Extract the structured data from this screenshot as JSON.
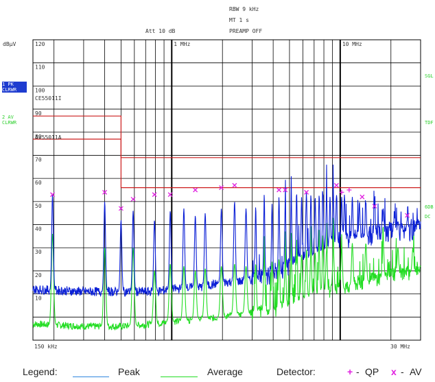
{
  "header": {
    "rbw": "RBW    9 kHz",
    "mt": "MT     1 s",
    "att": "Att  10 dB",
    "preamp": "PREAMP OFF"
  },
  "trace_tags": {
    "t1_line1": "1 PK",
    "t1_line2": "CLRWR",
    "t2_line1": "2 AV",
    "t2_line2": "CLRWR"
  },
  "right_tags": {
    "sgl": "SGL",
    "tdf": "TDF",
    "r6db": "6DB",
    "dc": "DC"
  },
  "limit_labels": {
    "qp": "CE55011I",
    "av": "AV55011A"
  },
  "legend": {
    "title": "Legend:",
    "peak": "Peak",
    "average": "Average",
    "detector": "Detector:",
    "qp_symbol": "+",
    "qp": "QP",
    "av_symbol": "x",
    "av": "AV",
    "dash": "-"
  },
  "colors": {
    "peak": "#0a1fd6",
    "average": "#22dd22",
    "limit": "#cc1b1b",
    "marker": "#e020e0",
    "tag_bg": "#1e3cd0",
    "green_text": "#2fd02f"
  },
  "chart_data": {
    "type": "line",
    "x_scale": "log",
    "x_unit": "MHz",
    "xlim": [
      0.15,
      30
    ],
    "ylim": [
      0,
      130
    ],
    "y_unit": "dBµV",
    "ylabel": "dBµV",
    "x_tick_labels": [
      {
        "x": 0.15,
        "label": "150 kHz"
      },
      {
        "x": 1,
        "label": "1 MHz"
      },
      {
        "x": 10,
        "label": "10 MHz"
      },
      {
        "x": 30,
        "label": "30 MHz"
      }
    ],
    "y_ticks": [
      130,
      120,
      110,
      100,
      90,
      80,
      70,
      60,
      50,
      40,
      30,
      20,
      10,
      0
    ],
    "y_tick_labels": [
      "120",
      "110",
      "100",
      "90",
      "80",
      "70",
      "60",
      "50",
      "40",
      "30",
      "20",
      "10",
      ""
    ],
    "limit_lines": [
      {
        "name": "CE55011I",
        "points": [
          [
            0.15,
            97
          ],
          [
            0.5,
            97
          ],
          [
            0.5,
            79
          ],
          [
            30,
            79
          ]
        ]
      },
      {
        "name": "AV55011A",
        "points": [
          [
            0.15,
            87
          ],
          [
            0.5,
            87
          ],
          [
            0.5,
            66
          ],
          [
            30,
            66
          ]
        ]
      }
    ],
    "series": [
      {
        "name": "Peak",
        "baseline": [
          [
            0.15,
            22
          ],
          [
            0.3,
            21
          ],
          [
            0.5,
            21
          ],
          [
            0.8,
            21
          ],
          [
            1,
            22
          ],
          [
            1.5,
            23
          ],
          [
            2,
            25
          ],
          [
            3,
            26
          ],
          [
            4,
            29
          ],
          [
            5,
            32
          ],
          [
            6,
            35
          ],
          [
            7,
            37
          ],
          [
            8,
            39
          ],
          [
            9,
            41
          ],
          [
            10,
            43
          ],
          [
            12,
            44
          ],
          [
            15,
            45
          ],
          [
            20,
            47
          ],
          [
            25,
            47
          ],
          [
            30,
            48
          ]
        ],
        "peaks": [
          [
            0.196,
            63
          ],
          [
            0.4,
            60
          ],
          [
            0.5,
            52
          ],
          [
            0.59,
            56
          ],
          [
            0.79,
            52
          ],
          [
            0.98,
            56
          ],
          [
            1.18,
            57
          ],
          [
            1.38,
            54
          ],
          [
            1.58,
            55
          ],
          [
            1.97,
            57
          ],
          [
            2.36,
            60
          ],
          [
            2.76,
            57
          ],
          [
            3.15,
            58
          ],
          [
            3.54,
            61
          ],
          [
            3.94,
            59
          ],
          [
            4.33,
            62
          ],
          [
            4.72,
            60
          ],
          [
            5.12,
            62
          ],
          [
            5.51,
            64
          ],
          [
            5.9,
            62
          ],
          [
            6.3,
            64
          ],
          [
            6.7,
            63
          ],
          [
            7.1,
            62
          ],
          [
            7.5,
            63
          ],
          [
            7.9,
            64
          ],
          [
            8.3,
            63
          ],
          [
            8.7,
            62
          ],
          [
            9.1,
            64
          ],
          [
            9.5,
            63
          ],
          [
            10.2,
            62
          ],
          [
            10.6,
            63
          ],
          [
            11.8,
            62
          ],
          [
            13,
            60
          ],
          [
            14.2,
            60
          ],
          [
            16,
            59
          ],
          [
            18,
            57
          ],
          [
            21,
            54
          ],
          [
            25,
            52
          ],
          [
            29,
            52
          ]
        ]
      },
      {
        "name": "Average",
        "baseline": [
          [
            0.15,
            7
          ],
          [
            0.3,
            6
          ],
          [
            0.5,
            6
          ],
          [
            0.8,
            7
          ],
          [
            1,
            8
          ],
          [
            1.5,
            9
          ],
          [
            2,
            10
          ],
          [
            3,
            12
          ],
          [
            4,
            13
          ],
          [
            5,
            15
          ],
          [
            6,
            17
          ],
          [
            7,
            19
          ],
          [
            8,
            20
          ],
          [
            9,
            21
          ],
          [
            10,
            22
          ],
          [
            12,
            24
          ],
          [
            15,
            26
          ],
          [
            20,
            28
          ],
          [
            25,
            29
          ],
          [
            30,
            30
          ]
        ],
        "peaks": [
          [
            0.196,
            46
          ],
          [
            0.4,
            40
          ],
          [
            0.59,
            40
          ],
          [
            0.79,
            30
          ],
          [
            0.98,
            33
          ],
          [
            1.18,
            32
          ],
          [
            1.38,
            30
          ],
          [
            1.58,
            31
          ],
          [
            1.97,
            32
          ],
          [
            2.36,
            33
          ],
          [
            2.76,
            32
          ],
          [
            3.15,
            33
          ],
          [
            3.54,
            34
          ],
          [
            3.94,
            34
          ],
          [
            4.33,
            35
          ],
          [
            4.72,
            35
          ],
          [
            5.12,
            36
          ],
          [
            5.51,
            37
          ],
          [
            5.9,
            37
          ],
          [
            6.3,
            38
          ],
          [
            6.7,
            38
          ],
          [
            7.1,
            38
          ],
          [
            7.5,
            39
          ],
          [
            7.9,
            39
          ],
          [
            8.3,
            39
          ],
          [
            9.1,
            40
          ],
          [
            10.2,
            40
          ],
          [
            11.8,
            42
          ],
          [
            14.2,
            42
          ],
          [
            18,
            42
          ],
          [
            22,
            40
          ],
          [
            27,
            40
          ]
        ]
      }
    ],
    "markers_qp": [
      [
        10.2,
        64
      ],
      [
        11.3,
        65
      ]
    ],
    "markers_av": [
      [
        0.196,
        63
      ],
      [
        0.4,
        64
      ],
      [
        0.5,
        57
      ],
      [
        0.59,
        61
      ],
      [
        0.79,
        63
      ],
      [
        0.98,
        63
      ],
      [
        1.38,
        65
      ],
      [
        1.97,
        66
      ],
      [
        2.36,
        67
      ],
      [
        4.33,
        65
      ],
      [
        4.72,
        65
      ],
      [
        6.3,
        64
      ],
      [
        9.5,
        67
      ],
      [
        13.5,
        62
      ],
      [
        16,
        58
      ],
      [
        25,
        54
      ]
    ]
  }
}
